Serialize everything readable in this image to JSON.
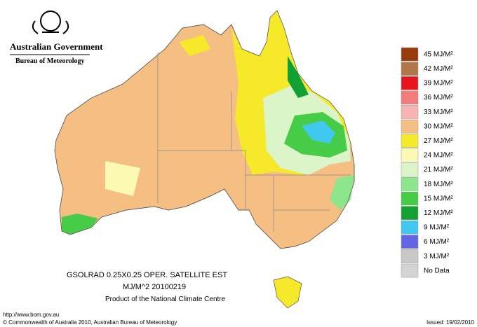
{
  "header": {
    "agency": "Australian Government",
    "bureau": "Bureau of Meteorology"
  },
  "legend": {
    "items": [
      {
        "label": "45 MJ/M²",
        "color": "#963c0c"
      },
      {
        "label": "42 MJ/M²",
        "color": "#b07848"
      },
      {
        "label": "39 MJ/M²",
        "color": "#e8141e"
      },
      {
        "label": "36 MJ/M²",
        "color": "#f47c7c"
      },
      {
        "label": "33 MJ/M²",
        "color": "#f8b4b4"
      },
      {
        "label": "30 MJ/M²",
        "color": "#f5be82"
      },
      {
        "label": "27 MJ/M²",
        "color": "#f5e92a"
      },
      {
        "label": "24 MJ/M²",
        "color": "#fafab4"
      },
      {
        "label": "21 MJ/M²",
        "color": "#dcf5c8"
      },
      {
        "label": "18 MJ/M²",
        "color": "#8ce68c"
      },
      {
        "label": "15 MJ/M²",
        "color": "#46cc46"
      },
      {
        "label": "12 MJ/M²",
        "color": "#12a032"
      },
      {
        "label": "9 MJ/M²",
        "color": "#40c8f0"
      },
      {
        "label": "6 MJ/M²",
        "color": "#6464e6"
      },
      {
        "label": "3 MJ/M²",
        "color": "#c8c8c8"
      },
      {
        "label": "No Data",
        "color": "#d4d4d4"
      }
    ]
  },
  "caption": {
    "line1": "GSOLRAD    0.25X0.25 OPER. SATELLITE EST",
    "line2": "MJ/M^2  20100219",
    "line3": "Product of the National Climate Centre"
  },
  "footer": {
    "url": "http://www.bom.gov.au",
    "copyright": "© Commonwealth of Australia 2010, Australian Bureau of Meteorology",
    "issued": "Issued: 19/02/2010"
  }
}
